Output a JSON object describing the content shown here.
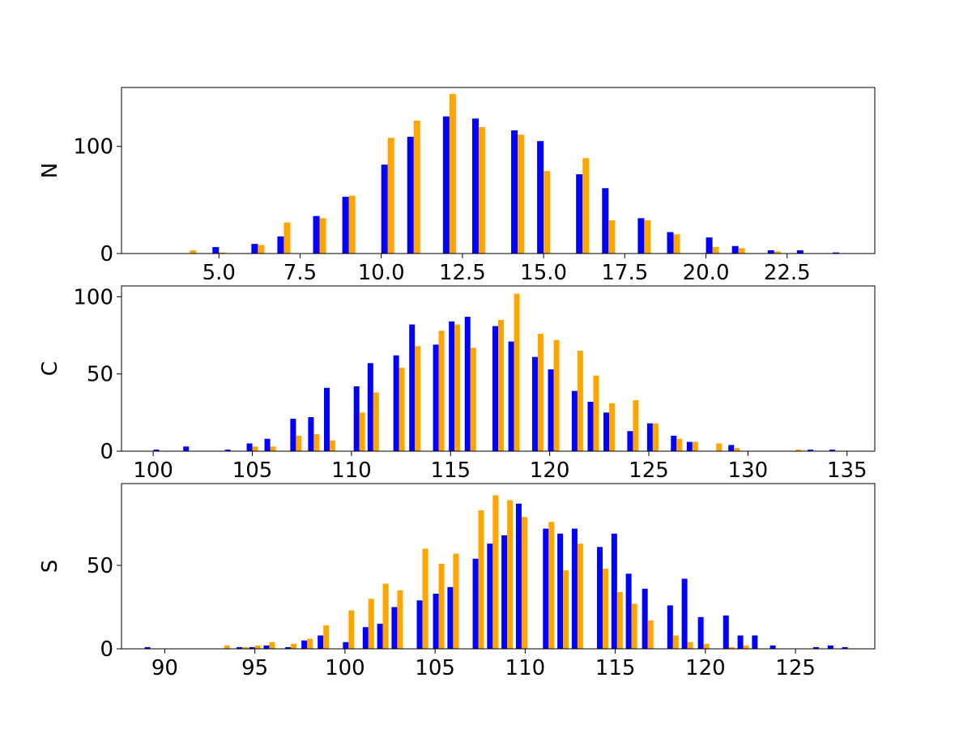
{
  "chart_data": [
    {
      "type": "bar",
      "ylabel": "N",
      "xlim": [
        2.0,
        25.2
      ],
      "ylim": [
        0,
        155
      ],
      "xticks": [
        5.0,
        7.5,
        10.0,
        12.5,
        15.0,
        17.5,
        20.0,
        22.5
      ],
      "xtick_labels": [
        "5.0",
        "7.5",
        "10.0",
        "12.5",
        "15.0",
        "17.5",
        "20.0",
        "22.5"
      ],
      "yticks": [
        0,
        100
      ],
      "ytick_labels": [
        "0",
        "100"
      ],
      "series": [
        {
          "color": "#0000ff",
          "x": [
            4.1,
            5.0,
            6.2,
            7.0,
            8.1,
            9.0,
            10.2,
            11.0,
            12.1,
            13.0,
            14.2,
            15.0,
            16.2,
            17.0,
            18.1,
            19.0,
            20.2,
            21.0,
            22.1,
            23.0,
            24.1
          ],
          "values": [
            0,
            6,
            9,
            16,
            35,
            53,
            83,
            109,
            128,
            126,
            115,
            105,
            74,
            61,
            33,
            20,
            15,
            7,
            3,
            3,
            1
          ]
        },
        {
          "color": "#ffa500",
          "x": [
            4.1,
            5.0,
            6.2,
            7.0,
            8.1,
            9.0,
            10.2,
            11.0,
            12.1,
            13.0,
            14.2,
            15.0,
            16.2,
            17.0,
            18.1,
            19.0,
            20.2,
            21.0,
            22.1,
            23.0,
            24.1
          ],
          "values": [
            3,
            1,
            8,
            29,
            33,
            54,
            108,
            124,
            149,
            118,
            111,
            77,
            89,
            31,
            31,
            18,
            6,
            5,
            2,
            0,
            0
          ]
        }
      ]
    },
    {
      "type": "bar",
      "ylabel": "C",
      "xlim": [
        98.4,
        136.4
      ],
      "ylim": [
        0,
        107
      ],
      "xticks": [
        100,
        105,
        110,
        115,
        120,
        125,
        130,
        135
      ],
      "xtick_labels": [
        "100",
        "105",
        "110",
        "115",
        "120",
        "125",
        "130",
        "135"
      ],
      "yticks": [
        0,
        50,
        100
      ],
      "ytick_labels": [
        "0",
        "50",
        "100"
      ],
      "series": [
        {
          "color": "#0000ff",
          "x": [
            100.3,
            101.8,
            103.9,
            105.0,
            105.9,
            107.2,
            108.1,
            108.9,
            110.4,
            111.1,
            112.4,
            113.2,
            114.4,
            115.2,
            116.0,
            117.4,
            118.2,
            119.4,
            120.2,
            121.4,
            122.2,
            123.0,
            124.2,
            125.2,
            126.4,
            127.2,
            128.4,
            129.3,
            130.4,
            132.4,
            133.3,
            134.4
          ],
          "values": [
            1,
            3,
            1,
            5,
            8,
            21,
            22,
            41,
            42,
            57,
            62,
            82,
            69,
            84,
            87,
            81,
            71,
            61,
            53,
            39,
            32,
            25,
            13,
            18,
            10,
            6,
            0,
            4,
            0,
            0,
            1,
            1
          ]
        },
        {
          "color": "#ffa500",
          "x": [
            100.3,
            101.8,
            103.9,
            105.0,
            105.9,
            107.2,
            108.1,
            108.9,
            110.4,
            111.1,
            112.4,
            113.2,
            114.4,
            115.2,
            116.0,
            117.4,
            118.2,
            119.4,
            120.2,
            121.4,
            122.2,
            123.0,
            124.2,
            125.2,
            126.4,
            127.2,
            128.4,
            129.3,
            130.4,
            132.4,
            133.3,
            134.4
          ],
          "values": [
            0,
            0,
            0,
            3,
            3,
            10,
            11,
            7,
            25,
            38,
            54,
            68,
            78,
            82,
            67,
            85,
            102,
            76,
            72,
            65,
            49,
            31,
            33,
            18,
            8,
            6,
            5,
            2,
            0,
            1,
            0,
            0
          ]
        }
      ]
    },
    {
      "type": "bar",
      "ylabel": "S",
      "xlim": [
        87.6,
        129.4
      ],
      "ylim": [
        0,
        99
      ],
      "xticks": [
        90,
        95,
        100,
        105,
        110,
        115,
        120,
        125
      ],
      "xtick_labels": [
        "90",
        "95",
        "100",
        "105",
        "110",
        "115",
        "120",
        "125"
      ],
      "yticks": [
        0,
        50
      ],
      "ytick_labels": [
        "0",
        "50"
      ],
      "series": [
        {
          "color": "#0000ff",
          "x": [
            89.2,
            93.3,
            94.3,
            95.0,
            95.8,
            97.0,
            97.9,
            98.8,
            100.2,
            101.3,
            102.1,
            102.9,
            104.3,
            105.2,
            106.0,
            107.4,
            108.2,
            109.0,
            109.8,
            111.3,
            112.1,
            112.9,
            114.3,
            115.1,
            115.9,
            116.8,
            118.2,
            119.0,
            119.9,
            121.3,
            122.1,
            122.9,
            123.9,
            125.3,
            126.3,
            127.1,
            127.9
          ],
          "values": [
            1,
            0,
            1,
            1,
            2,
            1,
            5,
            8,
            4,
            13,
            15,
            25,
            29,
            33,
            37,
            54,
            63,
            68,
            87,
            72,
            69,
            72,
            61,
            69,
            45,
            36,
            26,
            42,
            19,
            20,
            8,
            8,
            2,
            0,
            1,
            2,
            1
          ]
        },
        {
          "color": "#ffa500",
          "x": [
            89.2,
            93.3,
            94.3,
            95.0,
            95.8,
            97.0,
            97.9,
            98.8,
            100.2,
            101.3,
            102.1,
            102.9,
            104.3,
            105.2,
            106.0,
            107.4,
            108.2,
            109.0,
            109.8,
            111.3,
            112.1,
            112.9,
            114.3,
            115.1,
            115.9,
            116.8,
            118.2,
            119.0,
            119.9,
            121.3,
            122.1,
            122.9,
            123.9,
            125.3,
            126.3,
            127.1,
            127.9
          ],
          "values": [
            0,
            2,
            1,
            2,
            4,
            3,
            6,
            14,
            23,
            30,
            39,
            35,
            60,
            51,
            57,
            83,
            92,
            89,
            79,
            76,
            47,
            63,
            48,
            34,
            27,
            17,
            8,
            4,
            3,
            1,
            2,
            0,
            0,
            0,
            0,
            0,
            0
          ]
        }
      ]
    }
  ]
}
